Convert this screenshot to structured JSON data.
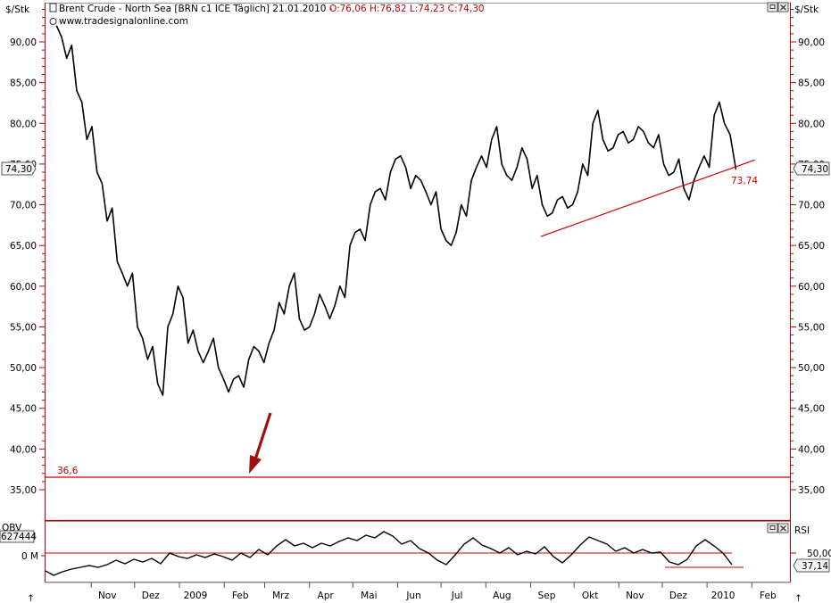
{
  "header": {
    "left_unit": "$/Stk",
    "right_unit": "$/Stk",
    "title": "Brent Crude - North Sea [BRN c1 ICE  Täglich] 21.01.2010 -",
    "ohlc": "O:76,06 H:76,82 L:74,23 C:74,30",
    "website": "www.tradesignalonline.com"
  },
  "price_badge_left": "74,30",
  "price_badge_right": "74,30",
  "annotations": {
    "support_label": "36,6",
    "trendline_label": "73,74",
    "lower_left_value": "627444",
    "lower_zero_label": "0 M",
    "lower_title_partial": "OBV",
    "rsi_title": "RSI",
    "rsi_level_label": "50,00",
    "rsi_value_badge": "37,14",
    "arrow_up_left": "↑",
    "arrow_up_right": "↑"
  },
  "colors": {
    "price_line": "#000000",
    "support_line": "#cc0000",
    "arrow": "#a01010",
    "grid_axis": "#cc0000"
  },
  "chart_data": {
    "type": "line",
    "title": "Brent Crude - North Sea",
    "ylabel": "$/Stk",
    "ylim": [
      31.5,
      95
    ],
    "yticks": [
      "35,00",
      "40,00",
      "45,00",
      "50,00",
      "55,00",
      "60,00",
      "65,00",
      "70,00",
      "75,00",
      "80,00",
      "85,00",
      "90,00"
    ],
    "x_tick_labels": [
      "Nov",
      "Dez",
      "2009",
      "Feb",
      "Mrz",
      "Apr",
      "Mai",
      "Jun",
      "Jul",
      "Aug",
      "Sep",
      "Okt",
      "Nov",
      "Dez",
      "2010",
      "Feb"
    ],
    "series": [
      {
        "name": "Brent Crude",
        "x": [
          "2008-10-08",
          "2008-10-15",
          "2008-10-22",
          "2008-10-29",
          "2008-11-05",
          "2008-11-12",
          "2008-11-19",
          "2008-11-26",
          "2008-12-03",
          "2008-12-10",
          "2008-12-17",
          "2008-12-24",
          "2008-12-31",
          "2009-01-07",
          "2009-01-14",
          "2009-01-21",
          "2009-01-28",
          "2009-02-04",
          "2009-02-11",
          "2009-02-18",
          "2009-02-25",
          "2009-03-04",
          "2009-03-11",
          "2009-03-18",
          "2009-03-25",
          "2009-04-01",
          "2009-04-08",
          "2009-04-15",
          "2009-04-22",
          "2009-04-29",
          "2009-05-06",
          "2009-05-13",
          "2009-05-20",
          "2009-05-27",
          "2009-06-03",
          "2009-06-10",
          "2009-06-17",
          "2009-06-24",
          "2009-07-01",
          "2009-07-08",
          "2009-07-15",
          "2009-07-22",
          "2009-07-29",
          "2009-08-05",
          "2009-08-12",
          "2009-08-19",
          "2009-08-26",
          "2009-09-02",
          "2009-09-09",
          "2009-09-16",
          "2009-09-23",
          "2009-09-30",
          "2009-10-07",
          "2009-10-14",
          "2009-10-21",
          "2009-10-28",
          "2009-11-04",
          "2009-11-11",
          "2009-11-18",
          "2009-11-25",
          "2009-12-02",
          "2009-12-09",
          "2009-12-16",
          "2009-12-23",
          "2009-12-30",
          "2010-01-06",
          "2010-01-13",
          "2010-01-21"
        ],
        "values": [
          92,
          88,
          84,
          78,
          74,
          68,
          63,
          60,
          55,
          51,
          48,
          55,
          60,
          53,
          52,
          52,
          50,
          47,
          49,
          51,
          52,
          53,
          58,
          60,
          56,
          55,
          59,
          56,
          60,
          65,
          67,
          70,
          72,
          74,
          76,
          72,
          73,
          70,
          67,
          65,
          70,
          73,
          76,
          78,
          75,
          73,
          77,
          72,
          70,
          69,
          71,
          70,
          75,
          80,
          78,
          77,
          79,
          78,
          79,
          77,
          75,
          74,
          72,
          73,
          76,
          81,
          80,
          74.3
        ]
      },
      {
        "name": "Trendline",
        "x": [
          "2009-09-08",
          "2010-02-03"
        ],
        "values": [
          66.1,
          75.5
        ]
      }
    ],
    "support_level": 36.6,
    "trendline_value": 73.74
  }
}
